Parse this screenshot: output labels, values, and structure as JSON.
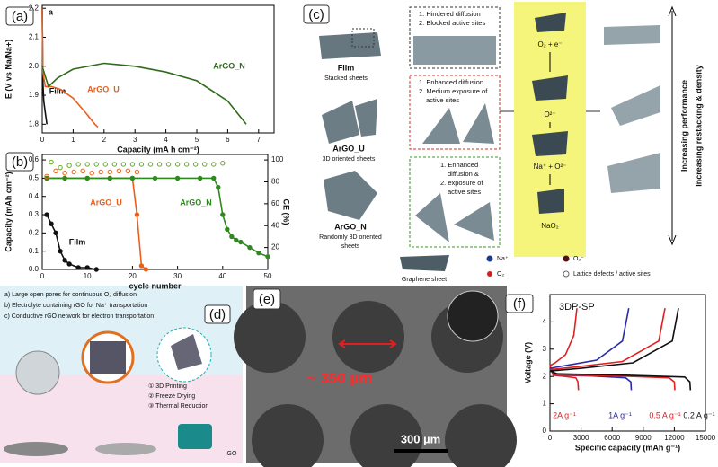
{
  "chart_data": [
    {
      "type": "line",
      "panel": "(a)",
      "annotation": "a",
      "xlabel": "Capacity (mA h cm⁻²)",
      "ylabel": "E (V vs Na/Na+)",
      "xlim": [
        0,
        7.5
      ],
      "ylim": [
        1.77,
        2.21
      ],
      "xticks": [
        0,
        1,
        2,
        3,
        4,
        5,
        6,
        7
      ],
      "yticks": [
        1.8,
        1.9,
        {
          "value": 2,
          "label": "2.0"
        },
        2.1,
        2.2
      ],
      "series": [
        {
          "name": "Film",
          "color": "#111111",
          "x": [
            0,
            0.02,
            0.05,
            0.1,
            0.15
          ],
          "values": [
            2.2,
            1.95,
            1.88,
            1.84,
            1.8
          ]
        },
        {
          "name": "ArGO_U",
          "color": "#e8601c",
          "x": [
            0,
            0.02,
            0.1,
            0.3,
            0.6,
            1.0,
            1.4,
            1.7,
            1.8
          ],
          "values": [
            2.2,
            1.98,
            1.93,
            1.93,
            1.92,
            1.89,
            1.84,
            1.8,
            1.79
          ]
        },
        {
          "name": "ArGO_N",
          "color": "#2f6b1a",
          "x": [
            0,
            0.2,
            0.5,
            1,
            2,
            3,
            4,
            5,
            6,
            6.6
          ],
          "values": [
            2.0,
            1.93,
            1.96,
            1.99,
            2.01,
            2.0,
            1.98,
            1.95,
            1.88,
            1.8
          ]
        }
      ]
    },
    {
      "type": "line",
      "panel": "(b)",
      "xlabel": "cycle number",
      "ylabel": "Capacity (mAh cm⁻²)",
      "y2label": "CE (%)",
      "xlim": [
        0,
        50
      ],
      "ylim": [
        0,
        0.63
      ],
      "y2lim": [
        0,
        105
      ],
      "xticks": [
        0,
        10,
        20,
        30,
        40,
        50
      ],
      "yticks": [
        {
          "value": 0,
          "label": "0.0"
        },
        0.1,
        0.2,
        0.3,
        0.4,
        0.5,
        0.6
      ],
      "y2ticks": [
        20,
        40,
        60,
        80,
        100
      ],
      "series": [
        {
          "name": "ArGO_U",
          "color": "#e8601c",
          "marker": "circle",
          "x": [
            1,
            5,
            10,
            15,
            20,
            21,
            22,
            23
          ],
          "values": [
            0.5,
            0.5,
            0.5,
            0.5,
            0.5,
            0.3,
            0.02,
            0
          ]
        },
        {
          "name": "ArGO_N",
          "color": "#2f8a1e",
          "marker": "circle",
          "x": [
            1,
            5,
            10,
            15,
            20,
            25,
            30,
            35,
            38,
            39,
            40,
            41,
            42,
            43,
            44,
            46,
            48,
            50
          ],
          "values": [
            0.5,
            0.5,
            0.5,
            0.5,
            0.5,
            0.5,
            0.5,
            0.5,
            0.5,
            0.45,
            0.3,
            0.22,
            0.18,
            0.16,
            0.15,
            0.12,
            0.09,
            0.07
          ]
        },
        {
          "name": "Film",
          "color": "#111111",
          "marker": "circle",
          "x": [
            1,
            2,
            3,
            4,
            5,
            6,
            8,
            10,
            12
          ],
          "values": [
            0.3,
            0.25,
            0.2,
            0.1,
            0.05,
            0.03,
            0.01,
            0.01,
            0
          ]
        },
        {
          "color": "#e8601c",
          "axis": "y2",
          "line": false,
          "marker": "circle",
          "x": [
            1,
            3,
            5,
            7,
            9,
            11,
            13,
            15,
            17,
            19,
            21
          ],
          "values": [
            85,
            90,
            88,
            89,
            90,
            88,
            89,
            89,
            90,
            90,
            89
          ]
        },
        {
          "color": "#6aa82a",
          "axis": "y2",
          "line": false,
          "marker": "circle",
          "x": [
            2,
            4,
            6,
            8,
            10,
            12,
            14,
            16,
            18,
            20,
            22,
            24,
            26,
            28,
            30,
            32,
            34,
            36,
            38,
            40
          ],
          "values": [
            98,
            93,
            95,
            96,
            96,
            96,
            96,
            96,
            96,
            96,
            96,
            96,
            96,
            96,
            96,
            96,
            96,
            96,
            96,
            97
          ]
        }
      ]
    },
    {
      "type": "line",
      "panel": "(f)",
      "title": "3DP-SP",
      "xlabel": "Specific capacity (mAh g⁻¹)",
      "ylabel": "Voltage (V)",
      "xlim": [
        0,
        15000
      ],
      "ylim": [
        0,
        5
      ],
      "xticks": [
        0,
        3000,
        6000,
        9000,
        12000,
        15000
      ],
      "yticks": [
        0,
        1,
        2,
        3,
        4
      ],
      "series": [
        {
          "name": "2A g⁻¹",
          "color": "#e02020",
          "x": [
            0,
            300,
            1500,
            2500,
            2700,
            2750,
            null,
            0,
            500,
            1500,
            2300,
            2600
          ],
          "values": [
            2.4,
            2.05,
            2.0,
            1.95,
            1.8,
            1.5,
            null,
            2.4,
            2.5,
            2.8,
            3.5,
            4.5
          ]
        },
        {
          "name": "1A g⁻¹",
          "color": "#2a2aa8",
          "x": [
            0,
            500,
            4000,
            7300,
            7800,
            7850,
            null,
            0,
            1500,
            4500,
            7000,
            7600
          ],
          "values": [
            2.3,
            2.05,
            2.02,
            1.95,
            1.8,
            1.5,
            null,
            2.3,
            2.4,
            2.6,
            3.3,
            4.5
          ]
        },
        {
          "name": "0.5 A g⁻¹",
          "color": "#e02020",
          "x": [
            0,
            600,
            6000,
            11500,
            12000,
            12050,
            null,
            0,
            2500,
            7000,
            10500,
            11100
          ],
          "values": [
            2.25,
            2.05,
            2.03,
            1.95,
            1.8,
            1.5,
            null,
            2.25,
            2.35,
            2.55,
            3.3,
            4.5
          ]
        },
        {
          "name": "0.2 A g⁻¹",
          "color": "#111111",
          "x": [
            0,
            700,
            7000,
            13000,
            13500,
            13550,
            null,
            0,
            3000,
            8000,
            11800,
            12400
          ],
          "values": [
            2.2,
            2.1,
            2.05,
            1.98,
            1.8,
            1.5,
            null,
            2.2,
            2.3,
            2.5,
            3.3,
            4.5
          ]
        }
      ]
    }
  ],
  "panel_c": {
    "label": "(c)",
    "film": {
      "name": "Film",
      "desc": "Stacked sheets",
      "notes": [
        "1.  Hindered diffusion",
        "2.  Blocked active sites"
      ]
    },
    "argo_u": {
      "name": "ArGO_U",
      "desc": "3D oriented sheets",
      "notes": [
        "1.  Enhanced diffusion",
        "2.  Medium exposure of",
        "active sites"
      ]
    },
    "argo_n": {
      "name": "ArGO_N",
      "desc": [
        "Randomly 3D oriented",
        "sheets"
      ],
      "notes": [
        "1.  Enhanced",
        "diffusion &",
        "2.  exposure of",
        "active sites"
      ]
    },
    "steps": [
      "O₂ + e⁻",
      "O²⁻",
      "Na⁺ + O²⁻",
      "NaO₂"
    ],
    "trends": [
      "Increasing performance",
      "Increasing restacking & density"
    ],
    "legend": [
      "Na⁺",
      "O₂⁻",
      "O₂",
      "Lattice defects / active sites",
      "Graphene sheet"
    ]
  },
  "panel_d": {
    "label": "(d)",
    "notes": [
      "a) Large open pores for continuous O₂ diffusion",
      "b) Electrolyte containing rGO for Na⁺ transportation",
      "c) Conductive rGO network for electron transportation"
    ],
    "steps": [
      "① 3D Printing",
      "② Freeze Drying",
      "③ Thermal Reduction"
    ],
    "go": "GO"
  },
  "panel_e": {
    "label": "(e)",
    "pore": "~ 350 µm",
    "scale": "300 µm"
  }
}
